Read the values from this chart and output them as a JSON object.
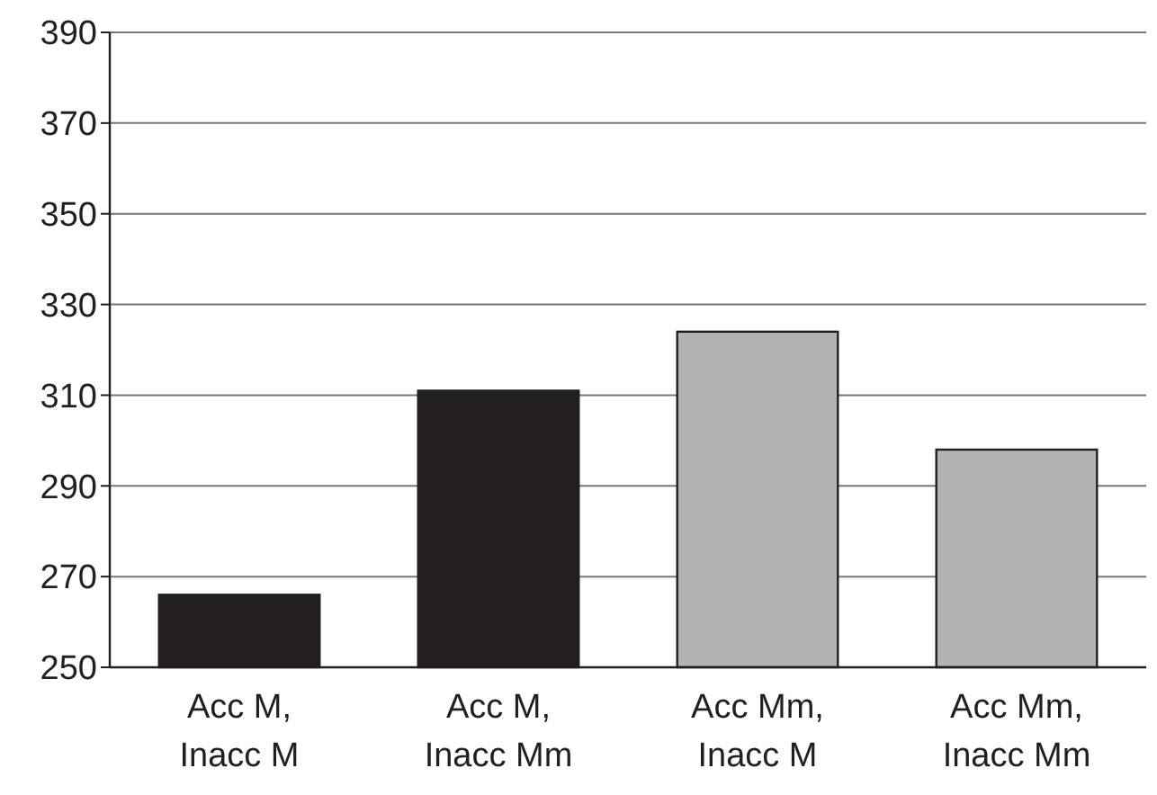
{
  "chart_data": {
    "type": "bar",
    "categories": [
      "Acc M, Inacc M",
      "Acc M, Inacc Mm",
      "Acc Mm, Inacc M",
      "Acc Mm, Inacc Mm"
    ],
    "values": [
      266,
      311,
      324,
      298
    ],
    "colors": [
      "#231f20",
      "#231f20",
      "#b3b3b3",
      "#b3b3b3"
    ],
    "ylim": [
      250,
      390
    ],
    "yticks": [
      250,
      270,
      290,
      310,
      330,
      350,
      370,
      390
    ],
    "grid": "y"
  }
}
